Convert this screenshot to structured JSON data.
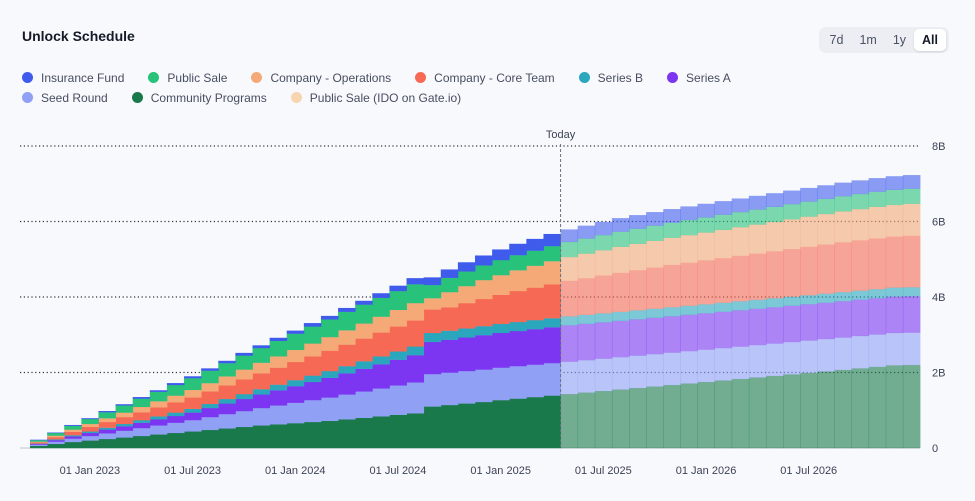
{
  "card": {
    "title": "Unlock Schedule",
    "ranges": [
      {
        "label": "7d",
        "active": false
      },
      {
        "label": "1m",
        "active": false
      },
      {
        "label": "1y",
        "active": false
      },
      {
        "label": "All",
        "active": true
      }
    ]
  },
  "chart_data": {
    "type": "area",
    "title": "Unlock Schedule",
    "today_label": "Today",
    "today_index": 31,
    "x_start": "Oct 2022",
    "x_end": "Dec 2026",
    "x_step": "month",
    "y_ticks": [
      {
        "value": 0,
        "label": "0"
      },
      {
        "value": 2,
        "label": "2B"
      },
      {
        "value": 4,
        "label": "4B"
      },
      {
        "value": 6,
        "label": "6B"
      },
      {
        "value": 8,
        "label": "8B"
      }
    ],
    "ylim": [
      0,
      8
    ],
    "x_ticks": [
      {
        "index": 3,
        "label": "01 Jan 2023"
      },
      {
        "index": 9,
        "label": "01 Jul 2023"
      },
      {
        "index": 15,
        "label": "01 Jan 2024"
      },
      {
        "index": 21,
        "label": "01 Jul 2024"
      },
      {
        "index": 27,
        "label": "01 Jan 2025"
      },
      {
        "index": 33,
        "label": "01 Jul 2025"
      },
      {
        "index": 39,
        "label": "01 Jan 2026"
      },
      {
        "index": 45,
        "label": "01 Jul 2026"
      }
    ],
    "series": [
      {
        "name": "Community Programs",
        "color": "#19794a",
        "values": [
          0.06,
          0.11,
          0.16,
          0.2,
          0.24,
          0.28,
          0.32,
          0.36,
          0.4,
          0.44,
          0.48,
          0.52,
          0.56,
          0.6,
          0.63,
          0.66,
          0.69,
          0.72,
          0.76,
          0.8,
          0.84,
          0.88,
          0.92,
          1.1,
          1.14,
          1.18,
          1.22,
          1.27,
          1.31,
          1.35,
          1.39,
          1.43,
          1.47,
          1.51,
          1.55,
          1.59,
          1.63,
          1.67,
          1.71,
          1.75,
          1.79,
          1.83,
          1.87,
          1.91,
          1.95,
          1.99,
          2.03,
          2.07,
          2.11,
          2.15,
          2.19,
          2.2
        ]
      },
      {
        "name": "Seed Round",
        "color": "#8fa0f5",
        "values": [
          0.03,
          0.06,
          0.09,
          0.12,
          0.15,
          0.18,
          0.21,
          0.24,
          0.27,
          0.3,
          0.34,
          0.38,
          0.42,
          0.46,
          0.5,
          0.54,
          0.58,
          0.62,
          0.66,
          0.7,
          0.74,
          0.78,
          0.82,
          0.86,
          0.86,
          0.86,
          0.86,
          0.86,
          0.86,
          0.86,
          0.86,
          0.86,
          0.86,
          0.86,
          0.86,
          0.86,
          0.86,
          0.86,
          0.86,
          0.86,
          0.86,
          0.86,
          0.86,
          0.86,
          0.86,
          0.86,
          0.86,
          0.86,
          0.86,
          0.86,
          0.86,
          0.86
        ]
      },
      {
        "name": "Series A",
        "color": "#7c35f0",
        "values": [
          0.02,
          0.04,
          0.06,
          0.08,
          0.1,
          0.12,
          0.14,
          0.16,
          0.18,
          0.2,
          0.24,
          0.28,
          0.32,
          0.36,
          0.4,
          0.44,
          0.48,
          0.52,
          0.56,
          0.6,
          0.64,
          0.68,
          0.72,
          0.85,
          0.87,
          0.89,
          0.91,
          0.92,
          0.93,
          0.94,
          0.95,
          0.96,
          0.96,
          0.96,
          0.96,
          0.96,
          0.96,
          0.96,
          0.96,
          0.96,
          0.96,
          0.96,
          0.96,
          0.96,
          0.96,
          0.96,
          0.96,
          0.96,
          0.96,
          0.96,
          0.96,
          0.96
        ]
      },
      {
        "name": "Series B",
        "color": "#2aa7bd",
        "values": [
          0.01,
          0.02,
          0.03,
          0.04,
          0.05,
          0.06,
          0.07,
          0.08,
          0.09,
          0.1,
          0.11,
          0.12,
          0.13,
          0.14,
          0.15,
          0.16,
          0.17,
          0.18,
          0.19,
          0.2,
          0.21,
          0.22,
          0.23,
          0.24,
          0.24,
          0.24,
          0.24,
          0.24,
          0.24,
          0.24,
          0.24,
          0.24,
          0.24,
          0.24,
          0.24,
          0.24,
          0.24,
          0.24,
          0.24,
          0.24,
          0.24,
          0.24,
          0.24,
          0.24,
          0.24,
          0.24,
          0.24,
          0.24,
          0.24,
          0.24,
          0.24,
          0.24
        ]
      },
      {
        "name": "Company - Core Team",
        "color": "#f66a55",
        "values": [
          0.03,
          0.06,
          0.09,
          0.12,
          0.15,
          0.18,
          0.21,
          0.24,
          0.27,
          0.3,
          0.33,
          0.36,
          0.39,
          0.42,
          0.45,
          0.48,
          0.51,
          0.54,
          0.57,
          0.6,
          0.63,
          0.66,
          0.69,
          0.62,
          0.62,
          0.67,
          0.72,
          0.77,
          0.82,
          0.86,
          0.9,
          0.94,
          0.97,
          1.0,
          1.03,
          1.06,
          1.09,
          1.12,
          1.14,
          1.16,
          1.18,
          1.2,
          1.22,
          1.24,
          1.26,
          1.28,
          1.3,
          1.32,
          1.33,
          1.34,
          1.35,
          1.36
        ]
      },
      {
        "name": "Company - Operations",
        "color": "#f4a977",
        "values": [
          0.02,
          0.04,
          0.06,
          0.08,
          0.1,
          0.12,
          0.14,
          0.16,
          0.18,
          0.2,
          0.22,
          0.24,
          0.26,
          0.28,
          0.3,
          0.32,
          0.34,
          0.36,
          0.38,
          0.4,
          0.42,
          0.44,
          0.46,
          0.3,
          0.4,
          0.45,
          0.5,
          0.52,
          0.55,
          0.58,
          0.61,
          0.63,
          0.65,
          0.67,
          0.69,
          0.7,
          0.71,
          0.72,
          0.73,
          0.74,
          0.75,
          0.76,
          0.77,
          0.78,
          0.79,
          0.8,
          0.81,
          0.82,
          0.83,
          0.84,
          0.84,
          0.85
        ]
      },
      {
        "name": "Public Sale (IDO on Gate.io)",
        "color": "#f8d4b0",
        "values": [
          0,
          0,
          0,
          0,
          0,
          0,
          0,
          0,
          0,
          0,
          0,
          0,
          0,
          0,
          0,
          0,
          0,
          0,
          0,
          0,
          0,
          0,
          0,
          0,
          0,
          0,
          0,
          0,
          0,
          0,
          0,
          0,
          0,
          0,
          0,
          0,
          0,
          0,
          0,
          0,
          0,
          0,
          0,
          0,
          0,
          0,
          0,
          0,
          0,
          0,
          0,
          0
        ]
      },
      {
        "name": "Public Sale",
        "color": "#28c27a",
        "values": [
          0.04,
          0.07,
          0.1,
          0.13,
          0.16,
          0.19,
          0.22,
          0.25,
          0.28,
          0.31,
          0.33,
          0.35,
          0.37,
          0.39,
          0.41,
          0.43,
          0.45,
          0.47,
          0.49,
          0.5,
          0.5,
          0.5,
          0.5,
          0.35,
          0.38,
          0.39,
          0.39,
          0.4,
          0.4,
          0.4,
          0.4,
          0.4,
          0.4,
          0.4,
          0.4,
          0.4,
          0.4,
          0.4,
          0.4,
          0.4,
          0.4,
          0.4,
          0.4,
          0.4,
          0.4,
          0.4,
          0.4,
          0.4,
          0.4,
          0.4,
          0.4,
          0.4
        ]
      },
      {
        "name": "Insurance Fund",
        "color": "#3f5bec",
        "values": [
          0.01,
          0.01,
          0.02,
          0.02,
          0.03,
          0.03,
          0.04,
          0.04,
          0.05,
          0.05,
          0.06,
          0.06,
          0.07,
          0.07,
          0.08,
          0.08,
          0.09,
          0.09,
          0.1,
          0.1,
          0.12,
          0.14,
          0.16,
          0.2,
          0.22,
          0.24,
          0.26,
          0.28,
          0.3,
          0.31,
          0.32,
          0.33,
          0.34,
          0.35,
          0.36,
          0.36,
          0.36,
          0.36,
          0.36,
          0.36,
          0.36,
          0.36,
          0.36,
          0.36,
          0.36,
          0.36,
          0.36,
          0.36,
          0.36,
          0.36,
          0.36,
          0.36
        ]
      }
    ]
  },
  "legend": [
    {
      "name": "Insurance Fund",
      "color": "#3f5bec"
    },
    {
      "name": "Public Sale",
      "color": "#28c27a"
    },
    {
      "name": "Company - Operations",
      "color": "#f4a977"
    },
    {
      "name": "Company - Core Team",
      "color": "#f66a55"
    },
    {
      "name": "Series B",
      "color": "#2aa7bd"
    },
    {
      "name": "Series A",
      "color": "#7c35f0"
    },
    {
      "name": "Seed Round",
      "color": "#8fa0f5"
    },
    {
      "name": "Community Programs",
      "color": "#19794a"
    },
    {
      "name": "Public Sale (IDO on Gate.io)",
      "color": "#f8d4b0"
    }
  ]
}
